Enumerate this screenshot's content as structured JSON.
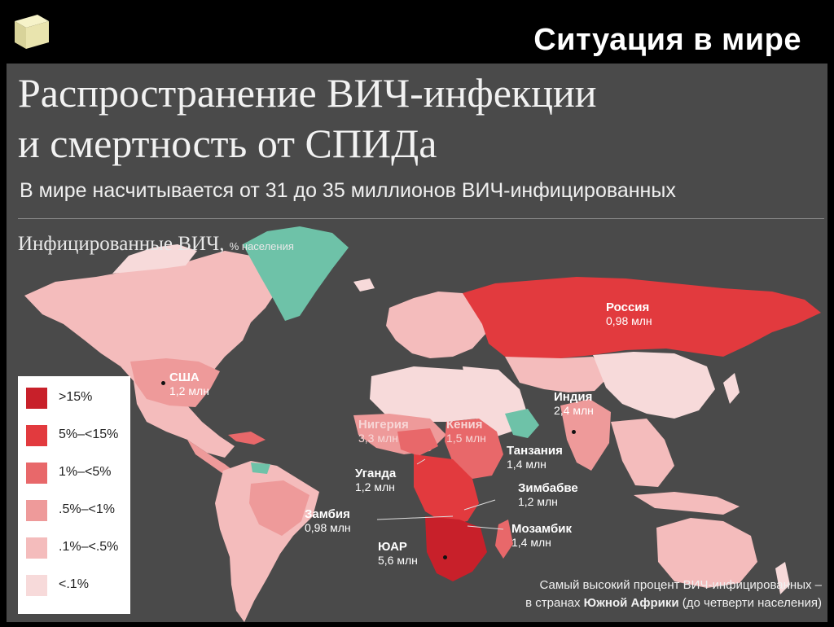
{
  "slide": {
    "title": "Ситуация в мире"
  },
  "heading": {
    "line1": "Распространение ВИЧ-инфекции",
    "line2": "и смертность от СПИДа",
    "subtitle": "В мире насчитывается от 31 до 35 миллионов ВИЧ-инфицированных"
  },
  "legend": {
    "title": "Инфицированные ВИЧ,",
    "title_small": "% населения",
    "items": [
      {
        "label": ">15%",
        "color": "#c8202a"
      },
      {
        "label": "5%–<15%",
        "color": "#e23a3e"
      },
      {
        "label": "1%–<5%",
        "color": "#e8686a"
      },
      {
        "label": ".5%–<1%",
        "color": "#ee9a9a"
      },
      {
        "label": ".1%–<.5%",
        "color": "#f4bcbc"
      },
      {
        "label": "<.1%",
        "color": "#f7dada"
      }
    ]
  },
  "countries": {
    "russia": {
      "name": "Россия",
      "value": "0,98 млн"
    },
    "usa": {
      "name": "США",
      "value": "1,2 млн"
    },
    "india": {
      "name": "Индия",
      "value": "2,4 млн"
    },
    "nigeria": {
      "name": "Нигерия",
      "value": "3,3 млн"
    },
    "kenya": {
      "name": "Кения",
      "value": "1,5 млн"
    },
    "tanzania": {
      "name": "Танзания",
      "value": "1,4 млн"
    },
    "uganda": {
      "name": "Уганда",
      "value": "1,2 млн"
    },
    "zimbabwe": {
      "name": "Зимбабве",
      "value": "1,2 млн"
    },
    "zambia": {
      "name": "Замбия",
      "value": "0,98 млн"
    },
    "mozambique": {
      "name": "Мозамбик",
      "value": "1,4 млн"
    },
    "sa": {
      "name": "ЮАР",
      "value": "5,6 млн"
    }
  },
  "note": {
    "line1": "Самый высокий процент ВИЧ-инфицированных –",
    "line2_pre": "в странах",
    "line2_bold": "Южной Африки",
    "line2_post": "(до четверти населения)"
  },
  "colors": {
    "background": "#4a4a4a",
    "greenland": "#6ec2a8",
    "lowest": "#f7dada"
  }
}
